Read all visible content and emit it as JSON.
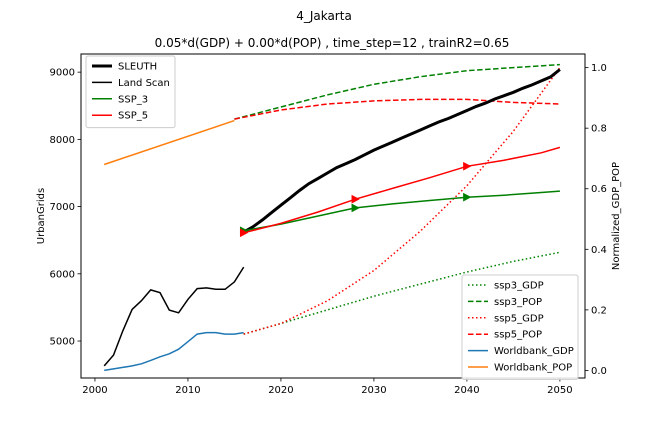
{
  "suptitle": "4_Jakarta",
  "chart_data": {
    "type": "line",
    "title": "0.05*d(GDP) + 0.00*d(POP) , time_step=12 , trainR2=0.65",
    "xlabel": "",
    "ylabel": "UrbanGrids",
    "y2label": "Normalized_GDP_POP",
    "xlim": [
      1998.5,
      2052.7
    ],
    "ylim": [
      4450,
      9270
    ],
    "y2lim": [
      -0.025,
      1.045
    ],
    "x_ticks": [
      2000,
      2010,
      2020,
      2030,
      2040,
      2050
    ],
    "y_ticks": [
      5000,
      6000,
      7000,
      8000,
      9000
    ],
    "y2_ticks": [
      0.0,
      0.2,
      0.4,
      0.6,
      0.8,
      1.0
    ],
    "grid": false,
    "legend_left": {
      "placement": "top-left",
      "entries": [
        {
          "label": "SLEUTH",
          "color": "#000000",
          "style": "solid-thick"
        },
        {
          "label": "Land Scan",
          "color": "#000000",
          "style": "solid"
        },
        {
          "label": "SSP_3",
          "color": "#008000",
          "style": "solid"
        },
        {
          "label": "SSP_5",
          "color": "#ff0000",
          "style": "solid"
        }
      ]
    },
    "legend_right": {
      "placement": "bottom-right",
      "entries": [
        {
          "label": "ssp3_GDP",
          "color": "#008000",
          "style": "dotted"
        },
        {
          "label": "ssp3_POP",
          "color": "#008000",
          "style": "dashed"
        },
        {
          "label": "ssp5_GDP",
          "color": "#ff0000",
          "style": "dotted"
        },
        {
          "label": "ssp5_POP",
          "color": "#ff0000",
          "style": "dashed"
        },
        {
          "label": "Worldbank_GDP",
          "color": "#1f77b4",
          "style": "solid"
        },
        {
          "label": "Worldbank_POP",
          "color": "#ff7f0e",
          "style": "solid"
        }
      ]
    },
    "series_left_axis": [
      {
        "name": "SLEUTH",
        "color": "#000000",
        "style": "solid-thick",
        "x": [
          2016,
          2017,
          2018,
          2019,
          2020,
          2021,
          2022,
          2023,
          2024,
          2025,
          2026,
          2027,
          2028,
          2029,
          2030,
          2031,
          2032,
          2033,
          2034,
          2035,
          2036,
          2037,
          2038,
          2039,
          2040,
          2041,
          2042,
          2043,
          2044,
          2045,
          2046,
          2047,
          2048,
          2049,
          2050
        ],
        "y": [
          6620,
          6700,
          6800,
          6910,
          7020,
          7130,
          7240,
          7340,
          7420,
          7500,
          7580,
          7640,
          7700,
          7770,
          7840,
          7900,
          7960,
          8020,
          8080,
          8140,
          8200,
          8260,
          8310,
          8370,
          8430,
          8490,
          8540,
          8600,
          8650,
          8700,
          8760,
          8810,
          8870,
          8930,
          9040
        ]
      },
      {
        "name": "Land Scan",
        "color": "#000000",
        "style": "solid",
        "x": [
          2001,
          2002,
          2003,
          2004,
          2005,
          2006,
          2007,
          2008,
          2009,
          2010,
          2011,
          2012,
          2013,
          2014,
          2015,
          2016
        ],
        "y": [
          4630,
          4790,
          5150,
          5470,
          5600,
          5760,
          5720,
          5460,
          5420,
          5620,
          5780,
          5790,
          5770,
          5770,
          5880,
          6100
        ]
      },
      {
        "name": "SSP_3",
        "color": "#008000",
        "style": "solid",
        "x": [
          2016,
          2020,
          2024,
          2028,
          2032,
          2036,
          2040,
          2044,
          2048,
          2050
        ],
        "y": [
          6640,
          6740,
          6860,
          6980,
          7040,
          7090,
          7140,
          7170,
          7210,
          7230
        ]
      },
      {
        "name": "SSP_5",
        "color": "#ff0000",
        "style": "solid",
        "x": [
          2016,
          2020,
          2024,
          2028,
          2032,
          2036,
          2040,
          2044,
          2048,
          2050
        ],
        "y": [
          6610,
          6750,
          6920,
          7110,
          7270,
          7430,
          7600,
          7690,
          7800,
          7880
        ]
      }
    ],
    "markers_left_axis": [
      {
        "series": "SSP_3",
        "color": "#008000",
        "x": [
          2016,
          2028,
          2040
        ],
        "y": [
          6640,
          6980,
          7140
        ]
      },
      {
        "series": "SSP_5",
        "color": "#ff0000",
        "x": [
          2016,
          2028,
          2040
        ],
        "y": [
          6610,
          7110,
          7600
        ]
      }
    ],
    "series_right_axis": [
      {
        "name": "ssp3_GDP",
        "color": "#008000",
        "style": "dotted",
        "x": [
          2016,
          2020,
          2025,
          2030,
          2035,
          2040,
          2045,
          2050
        ],
        "y": [
          0.12,
          0.155,
          0.2,
          0.245,
          0.285,
          0.325,
          0.36,
          0.39
        ]
      },
      {
        "name": "ssp3_POP",
        "color": "#008000",
        "style": "dashed",
        "x": [
          2015,
          2020,
          2025,
          2030,
          2035,
          2040,
          2045,
          2050
        ],
        "y": [
          0.83,
          0.87,
          0.91,
          0.945,
          0.97,
          0.99,
          1.0,
          1.01
        ]
      },
      {
        "name": "ssp5_GDP",
        "color": "#ff0000",
        "style": "dotted",
        "x": [
          2016,
          2020,
          2025,
          2030,
          2035,
          2040,
          2045,
          2050
        ],
        "y": [
          0.12,
          0.155,
          0.23,
          0.33,
          0.46,
          0.61,
          0.79,
          1.0
        ]
      },
      {
        "name": "ssp5_POP",
        "color": "#ff0000",
        "style": "dashed",
        "x": [
          2015,
          2020,
          2025,
          2030,
          2035,
          2040,
          2045,
          2050
        ],
        "y": [
          0.83,
          0.86,
          0.88,
          0.89,
          0.895,
          0.895,
          0.885,
          0.88
        ]
      },
      {
        "name": "Worldbank_GDP",
        "color": "#1f77b4",
        "style": "solid",
        "x": [
          2001,
          2002,
          2003,
          2004,
          2005,
          2006,
          2007,
          2008,
          2009,
          2010,
          2011,
          2012,
          2013,
          2014,
          2015,
          2016
        ],
        "y": [
          0.0,
          0.005,
          0.01,
          0.015,
          0.022,
          0.033,
          0.045,
          0.055,
          0.07,
          0.095,
          0.12,
          0.125,
          0.125,
          0.12,
          0.12,
          0.125
        ]
      },
      {
        "name": "Worldbank_POP",
        "color": "#ff7f0e",
        "style": "solid",
        "x": [
          2001,
          2015
        ],
        "y": [
          0.68,
          0.825
        ]
      }
    ]
  }
}
